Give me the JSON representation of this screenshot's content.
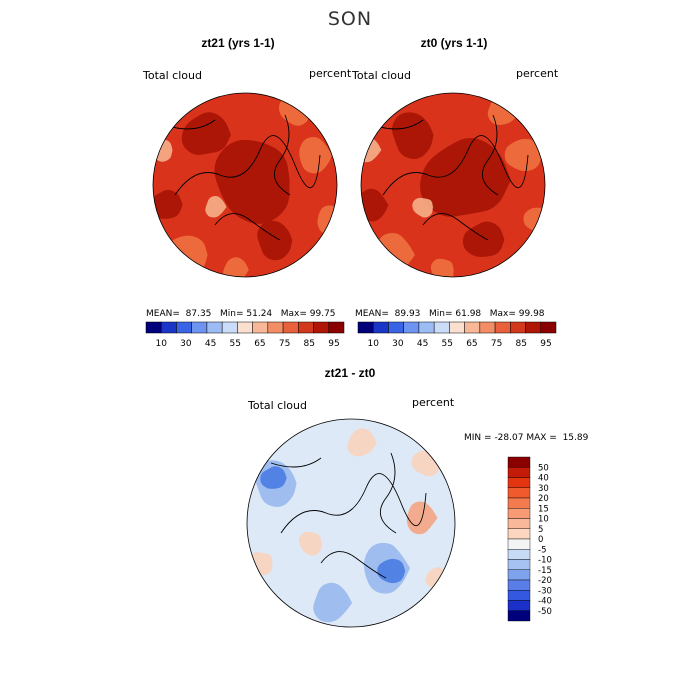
{
  "figure": {
    "season_title": "SON"
  },
  "chart_data": [
    {
      "type": "heatmap",
      "projection": "north-polar-stereographic",
      "title": "zt21 (yrs 1-1)",
      "variable": "Total cloud",
      "units": "percent",
      "stats": {
        "mean_label": "MEAN=",
        "mean": "87.35",
        "min_label": "Min=",
        "min": "51.24",
        "max_label": "Max=",
        "max": "99.75"
      },
      "colorbar": {
        "tick_labels": [
          "10",
          "30",
          "45",
          "55",
          "65",
          "75",
          "85",
          "95"
        ],
        "colors": [
          "#00007a",
          "#1a35c8",
          "#3a64e6",
          "#6e94f2",
          "#9dbcf6",
          "#cadcf8",
          "#fbe0cf",
          "#f8b796",
          "#f28d65",
          "#e8603c",
          "#d2381c",
          "#b01605",
          "#8a0000"
        ]
      },
      "field_colors": {
        "background": "#d9331b",
        "dark": "#a51306",
        "light": "#ee7040",
        "pale": "#f5b08b"
      }
    },
    {
      "type": "heatmap",
      "projection": "north-polar-stereographic",
      "title": "zt0 (yrs 1-1)",
      "variable": "Total cloud",
      "units": "percent",
      "stats": {
        "mean_label": "MEAN=",
        "mean": "89.93",
        "min_label": "Min=",
        "min": "61.98",
        "max_label": "Max=",
        "max": "99.98"
      },
      "colorbar": {
        "tick_labels": [
          "10",
          "30",
          "45",
          "55",
          "65",
          "75",
          "85",
          "95"
        ],
        "colors": [
          "#00007a",
          "#1a35c8",
          "#3a64e6",
          "#6e94f2",
          "#9dbcf6",
          "#cadcf8",
          "#fbe0cf",
          "#f8b796",
          "#f28d65",
          "#e8603c",
          "#d2381c",
          "#b01605",
          "#8a0000"
        ]
      },
      "field_colors": {
        "background": "#d9331b",
        "dark": "#a51306",
        "light": "#ee7040",
        "pale": "#f5b08b"
      }
    },
    {
      "type": "heatmap",
      "projection": "north-polar-stereographic",
      "title": "zt21 - zt0",
      "variable": "Total cloud",
      "units": "percent",
      "stats": {
        "min_label": "MIN =",
        "min": "-28.07",
        "max_label": "MAX =",
        "max": "15.89"
      },
      "colorbar": {
        "tick_labels": [
          "50",
          "40",
          "30",
          "20",
          "15",
          "10",
          "5",
          "0",
          "-5",
          "-10",
          "-15",
          "-20",
          "-30",
          "-40",
          "-50"
        ],
        "colors": [
          "#8a0000",
          "#c41a08",
          "#e23510",
          "#f05a2c",
          "#f47b50",
          "#f89a74",
          "#fab89a",
          "#fcd6c0",
          "#f4f4f4",
          "#c8dbf4",
          "#a6c2f2",
          "#7fa2ec",
          "#5a7ee8",
          "#3558e0",
          "#1a30c8",
          "#00007a"
        ]
      },
      "field_colors": {
        "background": "#dde9f7",
        "pos_pale": "#f7d4c0",
        "pos": "#f3a889",
        "neg": "#9bbbee",
        "neg_strong": "#4f7ee4"
      }
    }
  ]
}
